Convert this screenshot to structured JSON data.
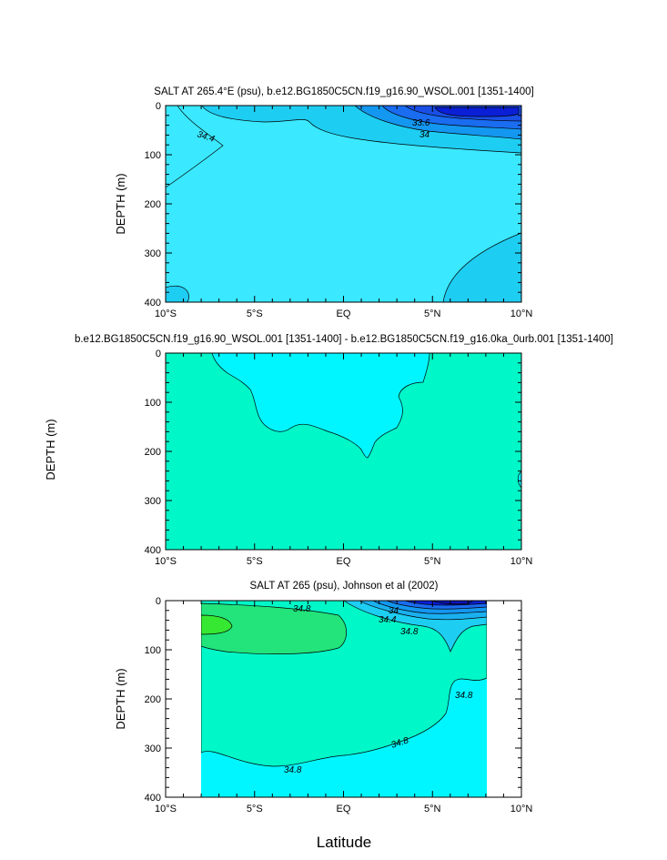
{
  "xlabel": "Latitude",
  "shared_ylabel": "DEPTH (m)",
  "colors": {
    "c_33_0": "#0a1fd6",
    "c_33_6": "#1a5ff0",
    "c_34_0": "#1497f0",
    "c_34_2": "#1ecdf2",
    "c_34_4": "#3ae8ff",
    "c_34_6": "#00f6ff",
    "c_34_8": "#00f7c8",
    "c_35_0": "#22e47a",
    "c_35_2": "#36e832",
    "line": "#000000"
  },
  "chart_data": [
    {
      "type": "contour",
      "title": "SALT AT 265.4°E (psu), b.e12.BG1850C5CN.f19_g16.90_WSOL.001 [1351-1400]",
      "ylabel": "DEPTH (m)",
      "xlabel": "",
      "x_ticks": [
        "10°S",
        "5°S",
        "EQ",
        "5°N",
        "10°N"
      ],
      "x_values": [
        -10,
        -5,
        0,
        5,
        10
      ],
      "y_ticks": [
        "0",
        "100",
        "200",
        "300",
        "400"
      ],
      "y_values": [
        0,
        100,
        200,
        300,
        400
      ],
      "xlim": [
        -10,
        10
      ],
      "ylim": [
        0,
        400
      ],
      "contour_labels": [
        "34.4",
        "33.6",
        "34"
      ]
    },
    {
      "type": "contour",
      "title": "b.e12.BG1850C5CN.f19_g16.90_WSOL.001 [1351-1400] - b.e12.BG1850C5CN.f19_g16.0ka_0urb.001 [1351-1400]",
      "ylabel": "",
      "xlabel": "",
      "x_ticks": [
        "10°S",
        "5°S",
        "EQ",
        "5°N",
        "10°N"
      ],
      "x_values": [
        -10,
        -5,
        0,
        5,
        10
      ],
      "y_ticks": [
        "0",
        "100",
        "200",
        "300",
        "400"
      ],
      "y_values": [
        0,
        100,
        200,
        300,
        400
      ],
      "xlim": [
        -10,
        10
      ],
      "ylim": [
        0,
        400
      ],
      "contour_labels": []
    },
    {
      "type": "contour",
      "title": "SALT AT 265 (psu), Johnson et al (2002)",
      "ylabel": "DEPTH (m)",
      "xlabel": "Latitude",
      "x_ticks": [
        "10°S",
        "5°S",
        "EQ",
        "5°N",
        "10°N"
      ],
      "x_values": [
        -10,
        -5,
        0,
        5,
        10
      ],
      "y_ticks": [
        "0",
        "100",
        "200",
        "300",
        "400"
      ],
      "y_values": [
        0,
        100,
        200,
        300,
        400
      ],
      "xlim": [
        -10,
        10
      ],
      "ylim": [
        0,
        400
      ],
      "data_xrange": [
        -8,
        8
      ],
      "contour_labels": [
        "34.8",
        "34",
        "34.4",
        "34.8",
        "34.8",
        "34.8",
        "34.8"
      ]
    }
  ]
}
